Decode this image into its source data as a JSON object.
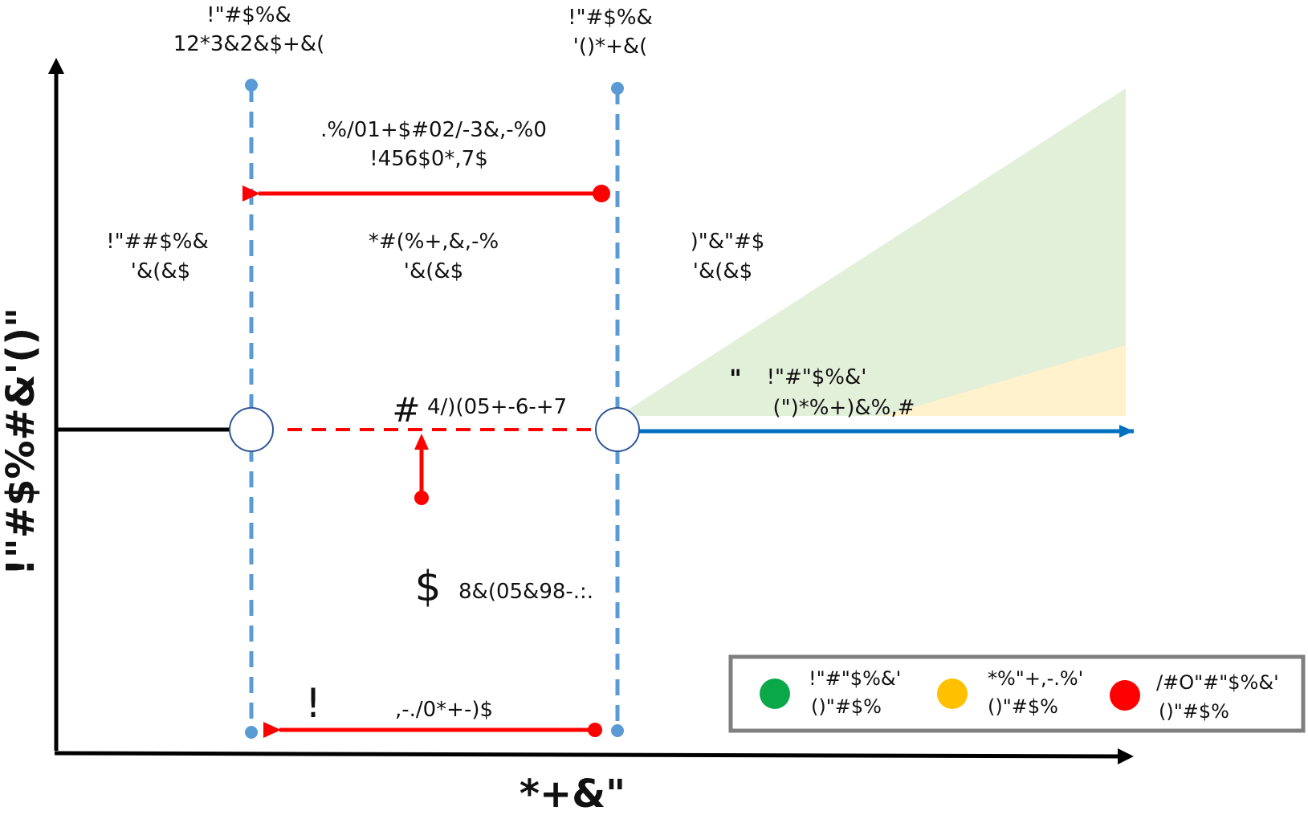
{
  "axes": {
    "x_label": "*+&\"",
    "y_label": "!\"#$%#&'()\""
  },
  "top_labels": {
    "left": [
      "!\"#$%&",
      "12*3&2&$+&("
    ],
    "right": [
      "!\"#$%&",
      "'()*+&("
    ]
  },
  "annotations": {
    "top_arrow": [
      ".%/01+$#02/-3&,-%0",
      "!456$0*,7$"
    ],
    "region_left": [
      "!\"##$%&",
      "'&(&$"
    ],
    "region_middle": [
      "*#(%+,&,-%",
      "'&(&$"
    ],
    "region_right": [
      ")\"&\"#$",
      "'&(&$"
    ],
    "safe_zone_marker": "\"",
    "safe_zone": [
      "!\"#\"$%&'",
      "(\")*%+)&%,#"
    ],
    "marker_hash": "#",
    "hash_text": "4/)(05+-6-+7",
    "marker_dollar": "$",
    "dollar_text": "8&(05&98-.:.",
    "marker_bang": "!",
    "bottom_text": ",-./0*+-)$"
  },
  "legend": {
    "items": [
      {
        "lines": [
          "!\"#\"$%&'",
          "()\"#$%"
        ],
        "color": "#0BA84A"
      },
      {
        "lines": [
          "*%\"+,-.%'",
          "()\"#$%"
        ],
        "color": "#FFC000"
      },
      {
        "lines": [
          "/#O\"#\"$%&'",
          "()\"#$%"
        ],
        "color": "#FF0000"
      }
    ]
  },
  "colors": {
    "boundary_line": "#5B9BD5",
    "arrow_red": "#FF0000",
    "flow_blue": "#0070C0",
    "zone_green": "#E2EFD9",
    "zone_yellow": "#FFF2CC"
  }
}
